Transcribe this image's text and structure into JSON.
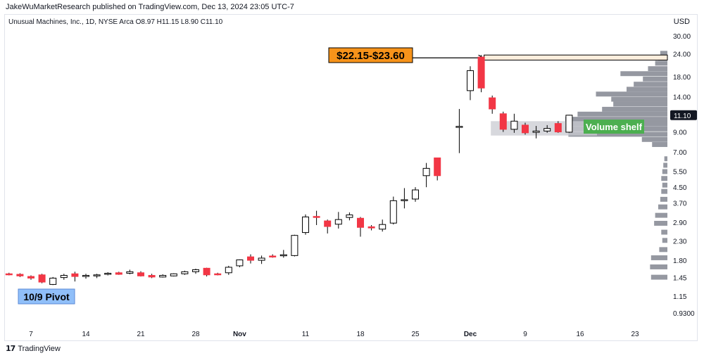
{
  "header": {
    "published_text": "JakeWuMarketResearch published on TradingView.com, Dec 13, 2024 23:05 UTC-7",
    "symbol_text": "Unusual Machines, Inc., 1D, NYSE Arca  O8.97  H11.15  L8.90  C11.10",
    "currency": "USD"
  },
  "footer": {
    "logo_glyph": "17",
    "brand": "TradingView"
  },
  "colors": {
    "up_body": "#ffffff",
    "up_border": "#000000",
    "down_body": "#f23645",
    "annotation_orange": "#f7931a",
    "annotation_green": "#4caf50",
    "annotation_blue": "#90bff9",
    "volume_bar": "#9598a1",
    "price_label_bg": "#131722"
  },
  "chart_data": {
    "type": "candlestick",
    "timeframe": "1D",
    "yscale": "log",
    "ylim": [
      0.85,
      33
    ],
    "y_ticks": [
      "30.00",
      "24.00",
      "18.00",
      "14.00",
      "11.10",
      "9.00",
      "7.00",
      "5.50",
      "4.50",
      "3.70",
      "2.90",
      "2.30",
      "1.80",
      "1.45",
      "1.15",
      "0.9300"
    ],
    "x_ticks": [
      {
        "label": "7",
        "date": "2024-10-07"
      },
      {
        "label": "14",
        "date": "2024-10-14"
      },
      {
        "label": "21",
        "date": "2024-10-21"
      },
      {
        "label": "28",
        "date": "2024-10-28"
      },
      {
        "label": "Nov",
        "date": "2024-11-01"
      },
      {
        "label": "11",
        "date": "2024-11-11"
      },
      {
        "label": "18",
        "date": "2024-11-18"
      },
      {
        "label": "25",
        "date": "2024-11-25"
      },
      {
        "label": "Dec",
        "date": "2024-12-02"
      },
      {
        "label": "9",
        "date": "2024-12-09"
      },
      {
        "label": "16",
        "date": "2024-12-16"
      },
      {
        "label": "23",
        "date": "2024-12-23"
      }
    ],
    "last_price": "11.10",
    "candles": [
      {
        "d": "2024-10-03",
        "o": 1.52,
        "h": 1.54,
        "l": 1.49,
        "c": 1.51
      },
      {
        "d": "2024-10-04",
        "o": 1.51,
        "h": 1.53,
        "l": 1.46,
        "c": 1.48
      },
      {
        "d": "2024-10-07",
        "o": 1.47,
        "h": 1.49,
        "l": 1.41,
        "c": 1.44
      },
      {
        "d": "2024-10-08",
        "o": 1.5,
        "h": 1.52,
        "l": 1.35,
        "c": 1.37
      },
      {
        "d": "2024-10-09",
        "o": 1.33,
        "h": 1.46,
        "l": 1.32,
        "c": 1.44
      },
      {
        "d": "2024-10-10",
        "o": 1.45,
        "h": 1.52,
        "l": 1.41,
        "c": 1.49
      },
      {
        "d": "2024-10-11",
        "o": 1.52,
        "h": 1.56,
        "l": 1.38,
        "c": 1.47
      },
      {
        "d": "2024-10-14",
        "o": 1.47,
        "h": 1.52,
        "l": 1.43,
        "c": 1.49
      },
      {
        "d": "2024-10-15",
        "o": 1.48,
        "h": 1.52,
        "l": 1.44,
        "c": 1.5
      },
      {
        "d": "2024-10-16",
        "o": 1.52,
        "h": 1.55,
        "l": 1.49,
        "c": 1.53
      },
      {
        "d": "2024-10-17",
        "o": 1.54,
        "h": 1.56,
        "l": 1.5,
        "c": 1.51
      },
      {
        "d": "2024-10-18",
        "o": 1.53,
        "h": 1.6,
        "l": 1.51,
        "c": 1.56
      },
      {
        "d": "2024-10-21",
        "o": 1.54,
        "h": 1.57,
        "l": 1.47,
        "c": 1.48
      },
      {
        "d": "2024-10-22",
        "o": 1.49,
        "h": 1.52,
        "l": 1.44,
        "c": 1.46
      },
      {
        "d": "2024-10-23",
        "o": 1.46,
        "h": 1.51,
        "l": 1.45,
        "c": 1.49
      },
      {
        "d": "2024-10-24",
        "o": 1.48,
        "h": 1.53,
        "l": 1.47,
        "c": 1.52
      },
      {
        "d": "2024-10-25",
        "o": 1.52,
        "h": 1.58,
        "l": 1.5,
        "c": 1.56
      },
      {
        "d": "2024-10-28",
        "o": 1.56,
        "h": 1.62,
        "l": 1.52,
        "c": 1.6
      },
      {
        "d": "2024-10-29",
        "o": 1.63,
        "h": 1.64,
        "l": 1.47,
        "c": 1.5
      },
      {
        "d": "2024-10-30",
        "o": 1.52,
        "h": 1.54,
        "l": 1.49,
        "c": 1.51
      },
      {
        "d": "2024-10-31",
        "o": 1.54,
        "h": 1.68,
        "l": 1.5,
        "c": 1.65
      },
      {
        "d": "2024-11-01",
        "o": 1.68,
        "h": 1.82,
        "l": 1.65,
        "c": 1.81
      },
      {
        "d": "2024-11-04",
        "o": 1.88,
        "h": 1.94,
        "l": 1.73,
        "c": 1.8
      },
      {
        "d": "2024-11-05",
        "o": 1.8,
        "h": 1.91,
        "l": 1.72,
        "c": 1.85
      },
      {
        "d": "2024-11-06",
        "o": 1.9,
        "h": 1.94,
        "l": 1.86,
        "c": 1.89
      },
      {
        "d": "2024-11-07",
        "o": 1.92,
        "h": 2.05,
        "l": 1.86,
        "c": 1.93
      },
      {
        "d": "2024-11-08",
        "o": 1.91,
        "h": 2.48,
        "l": 1.89,
        "c": 2.46
      },
      {
        "d": "2024-11-11",
        "o": 2.55,
        "h": 3.2,
        "l": 2.48,
        "c": 3.1
      },
      {
        "d": "2024-11-12",
        "o": 3.12,
        "h": 3.35,
        "l": 2.8,
        "c": 3.1
      },
      {
        "d": "2024-11-13",
        "o": 2.95,
        "h": 3.0,
        "l": 2.52,
        "c": 2.75
      },
      {
        "d": "2024-11-14",
        "o": 2.83,
        "h": 3.3,
        "l": 2.68,
        "c": 3.0
      },
      {
        "d": "2024-11-15",
        "o": 3.08,
        "h": 3.28,
        "l": 2.97,
        "c": 3.18
      },
      {
        "d": "2024-11-18",
        "o": 3.05,
        "h": 3.1,
        "l": 2.42,
        "c": 2.72
      },
      {
        "d": "2024-11-19",
        "o": 2.74,
        "h": 2.8,
        "l": 2.62,
        "c": 2.7
      },
      {
        "d": "2024-11-20",
        "o": 2.66,
        "h": 3.0,
        "l": 2.58,
        "c": 2.82
      },
      {
        "d": "2024-11-21",
        "o": 2.87,
        "h": 4.0,
        "l": 2.82,
        "c": 3.8
      },
      {
        "d": "2024-11-22",
        "o": 3.85,
        "h": 4.45,
        "l": 3.45,
        "c": 3.85
      },
      {
        "d": "2024-11-25",
        "o": 3.88,
        "h": 4.5,
        "l": 3.75,
        "c": 4.35
      },
      {
        "d": "2024-11-26",
        "o": 5.2,
        "h": 6.1,
        "l": 4.5,
        "c": 5.7
      },
      {
        "d": "2024-11-27",
        "o": 6.5,
        "h": 6.5,
        "l": 4.9,
        "c": 5.2
      },
      {
        "d": "2024-11-29",
        "o": 9.6,
        "h": 12.0,
        "l": 6.9,
        "c": 9.65
      },
      {
        "d": "2024-12-02",
        "o": 15.1,
        "h": 20.5,
        "l": 13.4,
        "c": 19.4
      },
      {
        "d": "2024-12-03",
        "o": 23.0,
        "h": 23.6,
        "l": 14.8,
        "c": 15.6
      },
      {
        "d": "2024-12-04",
        "o": 13.8,
        "h": 14.2,
        "l": 11.3,
        "c": 12.0
      },
      {
        "d": "2024-12-05",
        "o": 11.3,
        "h": 11.6,
        "l": 9.0,
        "c": 9.3
      },
      {
        "d": "2024-12-06",
        "o": 9.3,
        "h": 11.3,
        "l": 8.9,
        "c": 10.3
      },
      {
        "d": "2024-12-09",
        "o": 9.8,
        "h": 10.1,
        "l": 8.7,
        "c": 8.9
      },
      {
        "d": "2024-12-10",
        "o": 8.95,
        "h": 9.7,
        "l": 8.3,
        "c": 9.1
      },
      {
        "d": "2024-12-11",
        "o": 9.1,
        "h": 9.8,
        "l": 8.9,
        "c": 9.4
      },
      {
        "d": "2024-12-12",
        "o": 10.0,
        "h": 10.3,
        "l": 8.9,
        "c": 9.0
      },
      {
        "d": "2024-12-13",
        "o": 8.97,
        "h": 11.15,
        "l": 8.9,
        "c": 11.1
      }
    ],
    "volume_profile": [
      {
        "price": 24.0,
        "length": 0.07
      },
      {
        "price": 22.6,
        "length": 0.09
      },
      {
        "price": 21.2,
        "length": 0.12
      },
      {
        "price": 19.8,
        "length": 0.19
      },
      {
        "price": 18.6,
        "length": 0.46
      },
      {
        "price": 17.4,
        "length": 0.24
      },
      {
        "price": 16.3,
        "length": 0.33
      },
      {
        "price": 15.3,
        "length": 0.4
      },
      {
        "price": 14.4,
        "length": 0.7
      },
      {
        "price": 13.5,
        "length": 0.55
      },
      {
        "price": 12.7,
        "length": 0.53
      },
      {
        "price": 11.9,
        "length": 0.64
      },
      {
        "price": 11.2,
        "length": 0.88
      },
      {
        "price": 10.5,
        "length": 1.0
      },
      {
        "price": 9.9,
        "length": 0.96
      },
      {
        "price": 9.3,
        "length": 1.0
      },
      {
        "price": 8.7,
        "length": 0.97
      },
      {
        "price": 8.15,
        "length": 0.25
      },
      {
        "price": 7.65,
        "length": 0.15
      },
      {
        "price": 6.4,
        "length": 0.03
      },
      {
        "price": 5.9,
        "length": 0.04
      },
      {
        "price": 5.45,
        "length": 0.05
      },
      {
        "price": 5.0,
        "length": 0.06
      },
      {
        "price": 4.6,
        "length": 0.05
      },
      {
        "price": 4.25,
        "length": 0.06
      },
      {
        "price": 3.85,
        "length": 0.07
      },
      {
        "price": 3.5,
        "length": 0.09
      },
      {
        "price": 3.15,
        "length": 0.12
      },
      {
        "price": 2.85,
        "length": 0.13
      },
      {
        "price": 2.55,
        "length": 0.06
      },
      {
        "price": 2.3,
        "length": 0.05
      },
      {
        "price": 2.05,
        "length": 0.08
      },
      {
        "price": 1.85,
        "length": 0.16
      },
      {
        "price": 1.65,
        "length": 0.17
      },
      {
        "price": 1.45,
        "length": 0.16
      }
    ],
    "annotations": {
      "range_label": "$22.15-$23.60",
      "range_low": 22.15,
      "range_high": 23.6,
      "range_anchor_date": "2024-12-03",
      "shelf_label": "Volume shelf",
      "shelf_low": 8.6,
      "shelf_high": 10.3,
      "shelf_start_date": "2024-12-04",
      "pivot_label": "10/9 Pivot",
      "pivot_date": "2024-10-09"
    }
  }
}
